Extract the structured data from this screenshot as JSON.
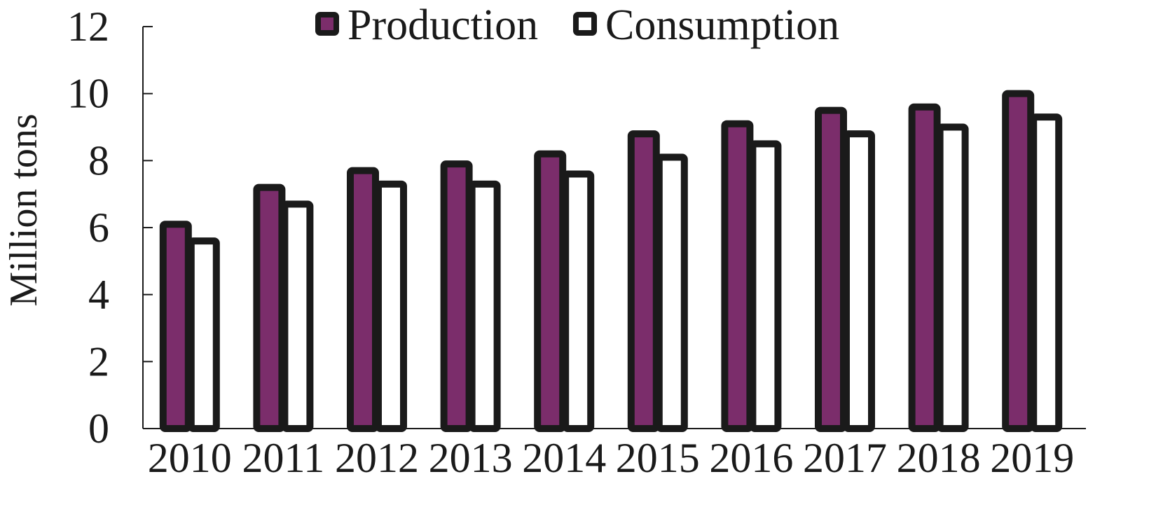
{
  "chart_data": {
    "type": "bar",
    "title": "",
    "xlabel": "",
    "ylabel": "Million tons",
    "ylim": [
      0,
      12
    ],
    "yticks": [
      "0",
      "2",
      "4",
      "6",
      "8",
      "10",
      "12"
    ],
    "categories": [
      "2010",
      "2011",
      "2012",
      "2013",
      "2014",
      "2015",
      "2016",
      "2017",
      "2018",
      "2019"
    ],
    "series": [
      {
        "name": "Production",
        "color": "#7b2d6b",
        "values": [
          6.1,
          7.2,
          7.7,
          7.9,
          8.2,
          8.8,
          9.1,
          9.5,
          9.6,
          10.0
        ]
      },
      {
        "name": "Consumption",
        "color": "#ffffff",
        "values": [
          5.6,
          6.7,
          7.3,
          7.3,
          7.6,
          8.1,
          8.5,
          8.8,
          9.0,
          9.3
        ]
      }
    ],
    "legend_position": "top-center",
    "grid": false
  }
}
